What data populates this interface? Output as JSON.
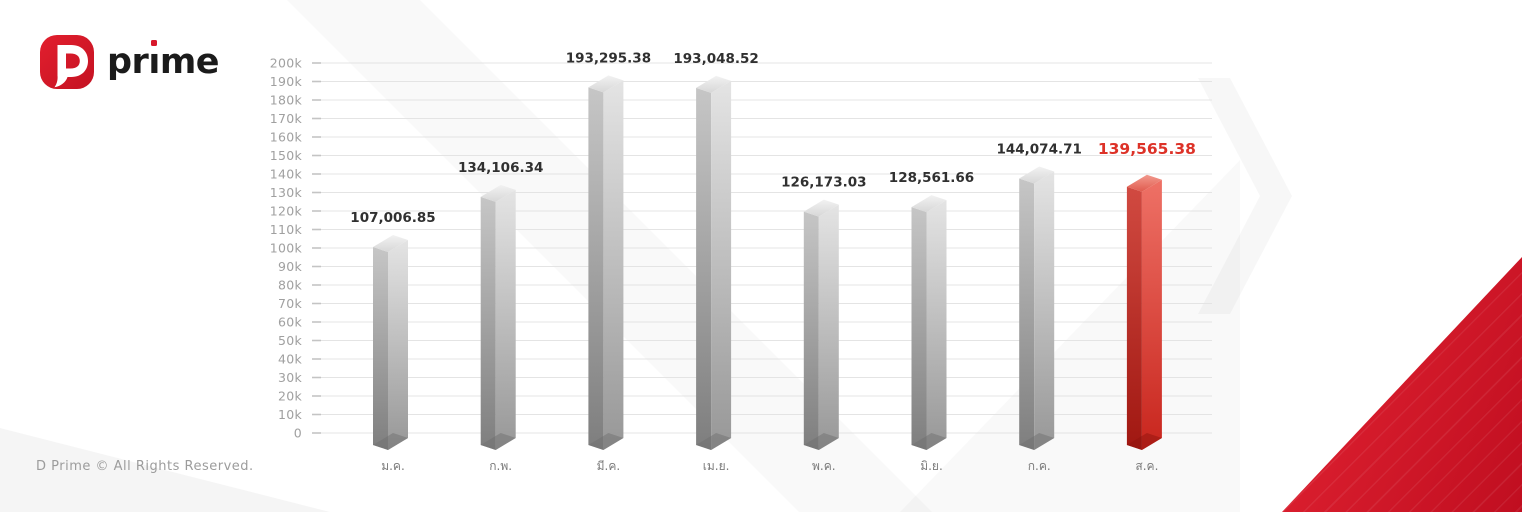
{
  "brand": {
    "name": "prime",
    "mark_letter": "D",
    "mark_color": "#d7182b"
  },
  "footer": {
    "copyright": "D Prime © All Rights Reserved."
  },
  "decor": {
    "corner_triangle_color": "#d6182b"
  },
  "chart_data": {
    "type": "bar",
    "title": "",
    "xlabel": "",
    "ylabel": "",
    "categories": [
      "ม.ค.",
      "ก.พ.",
      "มี.ค.",
      "เม.ย.",
      "พ.ค.",
      "มิ.ย.",
      "ก.ค.",
      "ส.ค."
    ],
    "values": [
      107006.85,
      134106.34,
      193295.38,
      193048.52,
      126173.03,
      128561.66,
      144074.71,
      139565.38
    ],
    "value_labels": [
      "107,006.85",
      "134,106.34",
      "193,295.38",
      "193,048.52",
      "126,173.03",
      "128,561.66",
      "144,074.71",
      "139,565.38"
    ],
    "highlight_index": 7,
    "ylim": [
      0,
      200000
    ],
    "ytick_step": 10000,
    "ytick_labels": [
      "0",
      "10k",
      "20k",
      "30k",
      "40k",
      "50k",
      "60k",
      "70k",
      "80k",
      "90k",
      "100k",
      "110k",
      "120k",
      "130k",
      "140k",
      "150k",
      "160k",
      "170k",
      "180k",
      "190k",
      "200k"
    ],
    "grid": true,
    "legend": null,
    "colors": {
      "value_label": "#303030",
      "highlight_label": "#dd3228",
      "ytick_label": "#a0a0a0",
      "category_label": "#7b7b7b",
      "gridline": "#e4e4e4",
      "tick": "#c4c4c4",
      "gray_bar": {
        "left": [
          "#c6c6c6",
          "#7e7e7e"
        ],
        "right": [
          "#e4e4e4",
          "#979797"
        ],
        "top": [
          "#f2f2f2",
          "#d7d7d7"
        ],
        "bottom": "#6f6f6f"
      },
      "red_bar": {
        "left": [
          "#d14a41",
          "#a01711"
        ],
        "right": [
          "#ee7166",
          "#c8251d"
        ],
        "top": [
          "#f29a8e",
          "#e05a4d"
        ],
        "bottom": "#8f130e"
      }
    }
  }
}
